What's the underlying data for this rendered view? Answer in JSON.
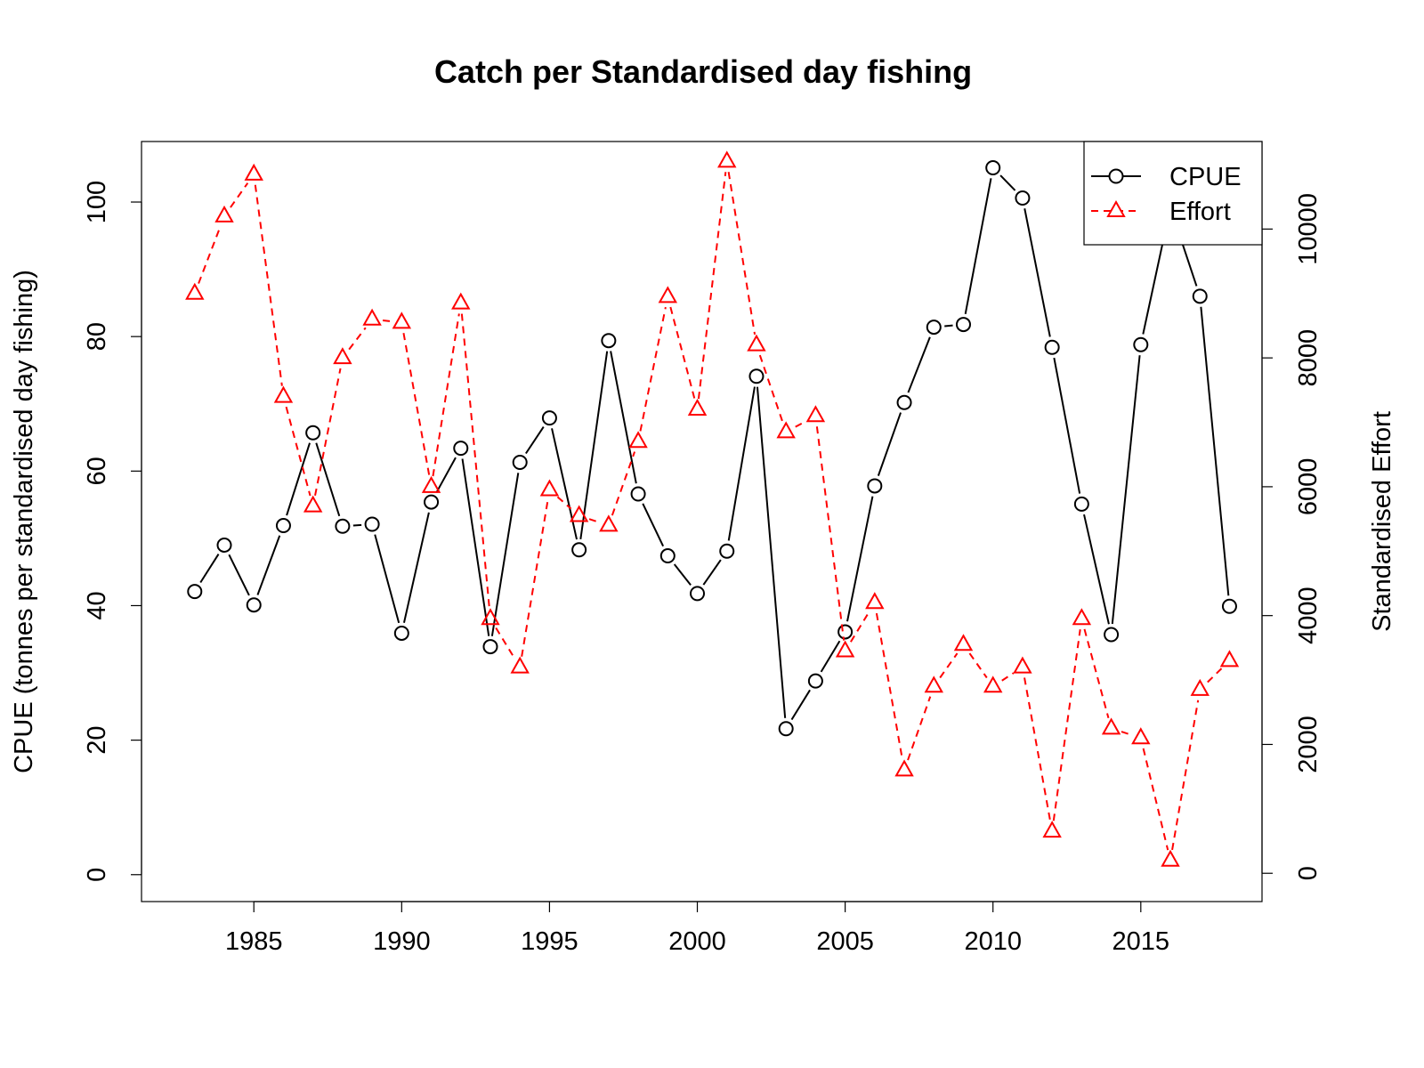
{
  "chart_data": {
    "type": "line",
    "title": "Catch per Standardised day fishing",
    "xlabel": "",
    "ylabel": "CPUE (tonnes per standardised day fishing)",
    "y2label": "Standardised Effort",
    "x": [
      1983,
      1984,
      1985,
      1986,
      1987,
      1988,
      1989,
      1990,
      1991,
      1992,
      1993,
      1994,
      1995,
      1996,
      1997,
      1998,
      1999,
      2000,
      2001,
      2002,
      2003,
      2004,
      2005,
      2006,
      2007,
      2008,
      2009,
      2010,
      2011,
      2012,
      2013,
      2014,
      2015,
      2016,
      2017,
      2018
    ],
    "xlim": [
      1981.2,
      2019.1
    ],
    "ylim": [
      -4,
      109
    ],
    "y2lim": [
      -439,
      11359
    ],
    "xticks": [
      "1985",
      "1990",
      "1995",
      "2000",
      "2005",
      "2010",
      "2015"
    ],
    "yticks": [
      "0",
      "20",
      "40",
      "60",
      "80",
      "100"
    ],
    "y2ticks": [
      "0",
      "2000",
      "4000",
      "6000",
      "8000",
      "10000"
    ],
    "grid": false,
    "legend_position": "top-right",
    "series": [
      {
        "name": "CPUE",
        "axis": "left",
        "color": "#000000",
        "line_style": "solid",
        "marker": "circle",
        "values": [
          42.1,
          49.0,
          40.1,
          51.9,
          65.7,
          51.8,
          52.1,
          35.9,
          55.4,
          63.4,
          33.9,
          61.3,
          67.9,
          48.3,
          79.4,
          56.6,
          47.4,
          41.8,
          48.1,
          74.1,
          21.7,
          28.8,
          36.1,
          57.8,
          70.2,
          81.4,
          81.8,
          105.1,
          100.6,
          78.4,
          55.1,
          35.7,
          78.8,
          99.2,
          86.0,
          39.9
        ]
      },
      {
        "name": "Effort",
        "axis": "right",
        "color": "#ff0000",
        "line_style": "dashed",
        "marker": "triangle",
        "values": [
          9000,
          10200,
          10850,
          7400,
          5700,
          8000,
          8600,
          8550,
          6000,
          8850,
          3950,
          3200,
          5950,
          5550,
          5400,
          6700,
          8950,
          7200,
          11050,
          8200,
          6850,
          7100,
          3450,
          4200,
          1600,
          2900,
          3550,
          2900,
          3200,
          650,
          3950,
          2250,
          2100,
          200,
          2850,
          3300
        ]
      }
    ]
  }
}
